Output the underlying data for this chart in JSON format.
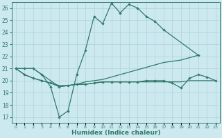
{
  "xlabel": "Humidex (Indice chaleur)",
  "background_color": "#cde9f0",
  "grid_color": "#b0d0d8",
  "line_color": "#2f7a6a",
  "line1_x": [
    0,
    1,
    2,
    3,
    4,
    5,
    6,
    7,
    8,
    9,
    10,
    11,
    12,
    13,
    14,
    15,
    16,
    17,
    21
  ],
  "line1_y": [
    21.0,
    21.0,
    21.0,
    20.5,
    19.5,
    17.0,
    17.5,
    20.5,
    22.5,
    25.3,
    24.7,
    26.4,
    25.6,
    26.3,
    26.0,
    25.3,
    24.9,
    24.2,
    22.1
  ],
  "line2_x": [
    0,
    1,
    2,
    3,
    4,
    5,
    6,
    7,
    8,
    9,
    10,
    11,
    12,
    13,
    14,
    15,
    16,
    17,
    18,
    19,
    20,
    21
  ],
  "line2_y": [
    21.0,
    21.0,
    21.0,
    20.5,
    20.0,
    19.5,
    19.6,
    19.7,
    19.9,
    20.0,
    20.1,
    20.3,
    20.5,
    20.7,
    20.9,
    21.1,
    21.3,
    21.5,
    21.6,
    21.7,
    21.9,
    22.1
  ],
  "line3_x": [
    0,
    1,
    2,
    3,
    4,
    5,
    6,
    7,
    8,
    9,
    10,
    11,
    12,
    13,
    14,
    15,
    16,
    17,
    18,
    19,
    20,
    21,
    22,
    23
  ],
  "line3_y": [
    21.0,
    20.5,
    20.2,
    20.0,
    19.8,
    19.6,
    19.6,
    19.7,
    19.7,
    19.8,
    19.9,
    19.9,
    19.9,
    19.9,
    19.9,
    19.9,
    19.9,
    19.9,
    19.9,
    19.9,
    20.0,
    20.0,
    20.0,
    20.0
  ],
  "line4_x": [
    0,
    1,
    2,
    3,
    4,
    5,
    6,
    7,
    8,
    9,
    10,
    11,
    12,
    13,
    14,
    15,
    16,
    17,
    18,
    19,
    20,
    21,
    22,
    23
  ],
  "line4_y": [
    21.0,
    20.5,
    20.2,
    20.0,
    19.8,
    19.5,
    19.6,
    19.7,
    19.7,
    19.8,
    19.9,
    19.9,
    19.9,
    19.9,
    19.9,
    20.0,
    20.0,
    20.0,
    19.8,
    19.4,
    20.2,
    20.5,
    20.3,
    20.0
  ],
  "ylim": [
    16.5,
    26.5
  ],
  "xlim": [
    -0.5,
    23.5
  ],
  "yticks": [
    17,
    18,
    19,
    20,
    21,
    22,
    23,
    24,
    25,
    26
  ],
  "xticks": [
    0,
    1,
    2,
    3,
    4,
    5,
    6,
    7,
    8,
    9,
    10,
    11,
    12,
    13,
    14,
    15,
    16,
    17,
    18,
    19,
    20,
    21,
    22,
    23
  ]
}
